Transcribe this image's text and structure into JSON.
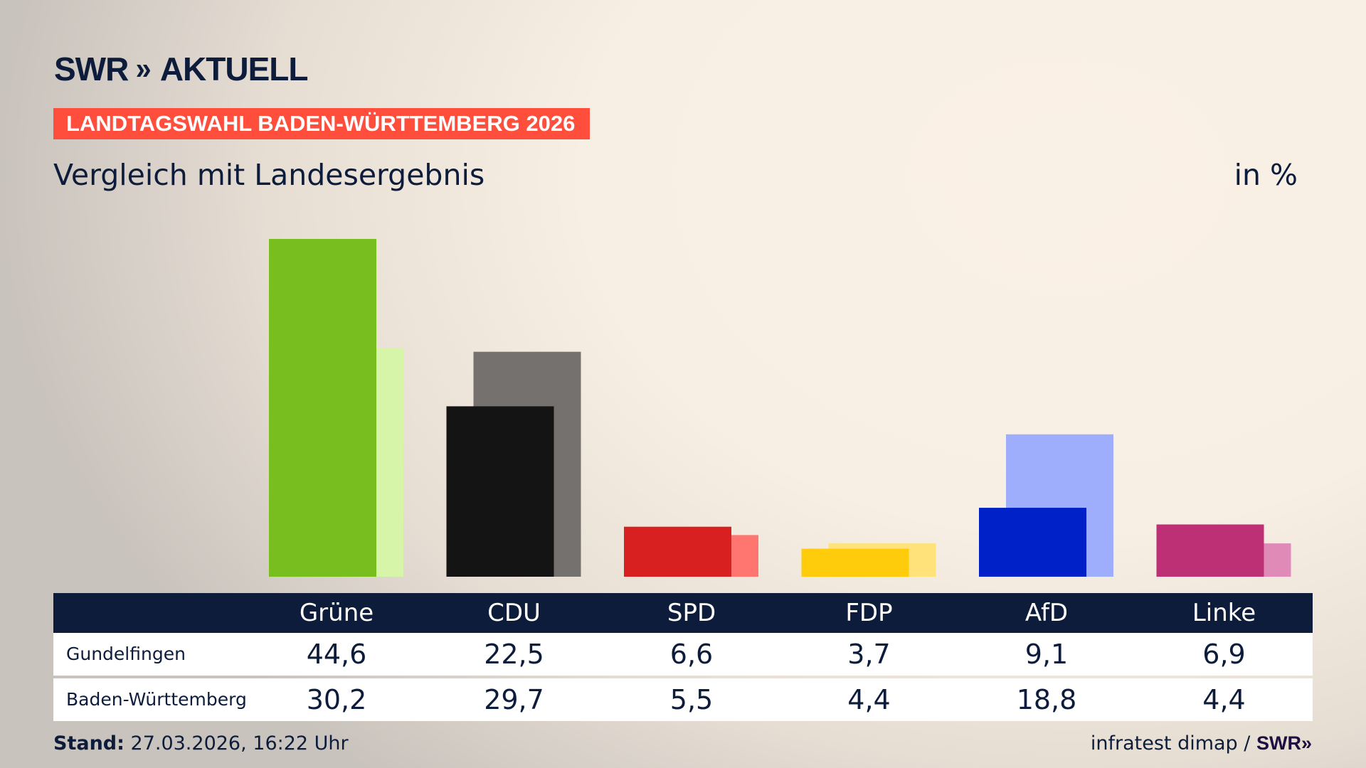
{
  "header": {
    "logo_text": "SWR",
    "logo_suffix": "AKTUELL",
    "banner": "LANDTAGSWAHL BADEN-WÜRTTEMBERG 2026",
    "subtitle": "Vergleich mit Landesergebnis",
    "unit": "in %"
  },
  "chart_data": {
    "type": "bar",
    "title": "Vergleich mit Landesergebnis",
    "ylabel": "in %",
    "categories": [
      "Grüne",
      "CDU",
      "SPD",
      "FDP",
      "AfD",
      "Linke"
    ],
    "series": [
      {
        "name": "Gundelfingen",
        "values": [
          44.6,
          22.5,
          6.6,
          3.7,
          9.1,
          6.9
        ],
        "colors": [
          "#78be1e",
          "#141414",
          "#d7201f",
          "#ffcc0c",
          "#0021c7",
          "#be3075"
        ]
      },
      {
        "name": "Baden-Württemberg",
        "values": [
          30.2,
          29.7,
          5.5,
          4.4,
          18.8,
          4.4
        ],
        "colors": [
          "#d6f5a8",
          "#74716e",
          "#ff7570",
          "#ffe27a",
          "#9eadfc",
          "#e08ab8"
        ]
      }
    ],
    "grid": false,
    "legend": "table-below"
  },
  "table": {
    "headers": [
      "Grüne",
      "CDU",
      "SPD",
      "FDP",
      "AfD",
      "Linke"
    ],
    "rows": [
      {
        "label": "Gundelfingen",
        "values": [
          "44,6",
          "22,5",
          "6,6",
          "3,7",
          "9,1",
          "6,9"
        ]
      },
      {
        "label": "Baden-Württemberg",
        "values": [
          "30,2",
          "29,7",
          "5,5",
          "4,4",
          "18,8",
          "4,4"
        ]
      }
    ]
  },
  "footer": {
    "stand_label": "Stand:",
    "stand_value": "27.03.2026, 16:22 Uhr",
    "source": "infratest dimap /",
    "source_logo": "SWR»"
  },
  "colors": {
    "navy": "#0c1c3a",
    "banner": "#ff4f3c"
  }
}
